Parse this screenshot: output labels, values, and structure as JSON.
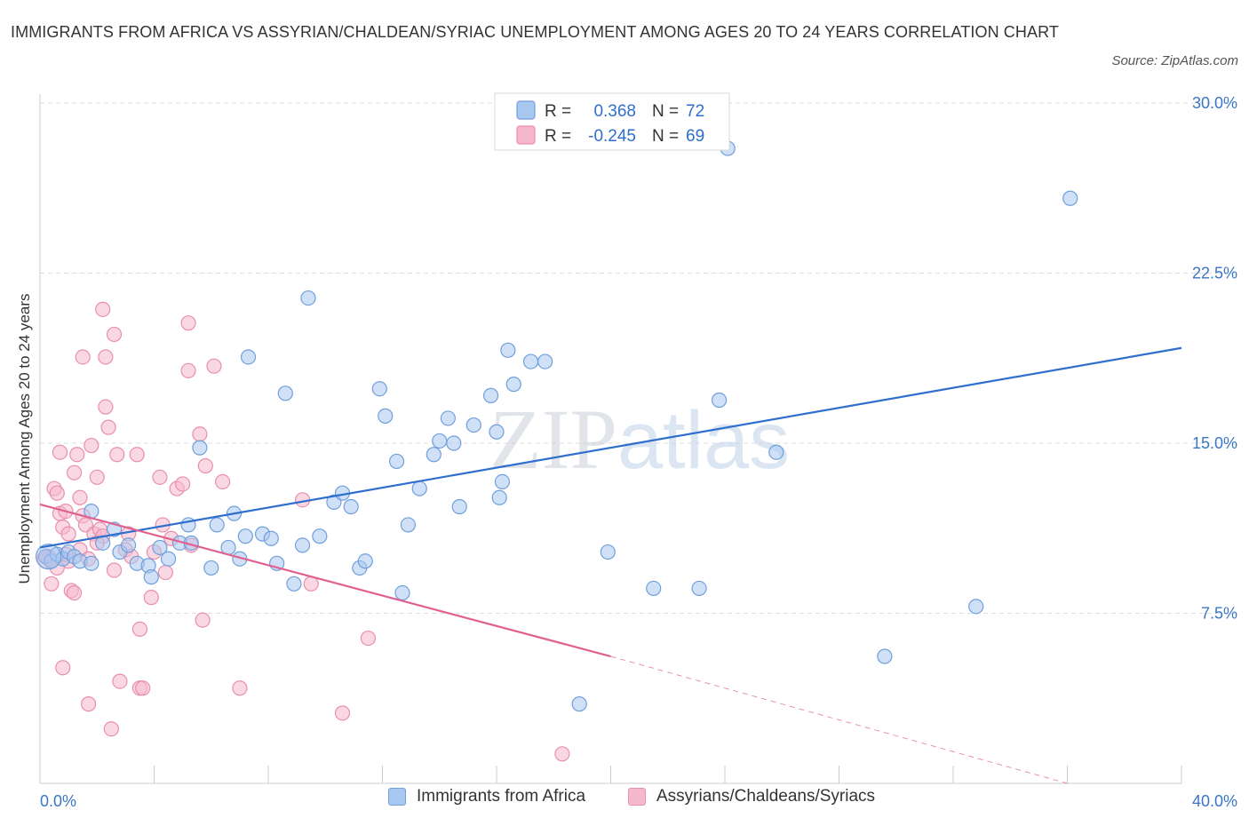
{
  "title": "IMMIGRANTS FROM AFRICA VS ASSYRIAN/CHALDEAN/SYRIAC UNEMPLOYMENT AMONG AGES 20 TO 24 YEARS CORRELATION CHART",
  "source": "Source: ZipAtlas.com",
  "watermark": "ZIPatlas",
  "colors": {
    "blue_fill": "#a9c8f1",
    "blue_stroke": "#6f9fdb",
    "blue_line": "#2e6fcd",
    "pink_fill": "#f6b8cc",
    "pink_stroke": "#e98fab",
    "pink_line": "#e0618f",
    "axis_text": "#3a76c6",
    "grid": "#dddddd"
  },
  "stats": {
    "r_label": "R =",
    "n_label": "N =",
    "series1": {
      "r": "0.368",
      "n": "72"
    },
    "series2": {
      "r": "-0.245",
      "n": "69"
    }
  },
  "chart_data": {
    "type": "scatter",
    "title": "IMMIGRANTS FROM AFRICA VS ASSYRIAN/CHALDEAN/SYRIAC UNEMPLOYMENT AMONG AGES 20 TO 24 YEARS CORRELATION CHART",
    "ylabel": "Unemployment Among Ages 20 to 24 years",
    "xlabel": "",
    "xlim": [
      0,
      40
    ],
    "ylim": [
      0,
      30
    ],
    "x_tick_labels": [
      "0.0%",
      "40.0%"
    ],
    "y_ticks": [
      7.5,
      15.0,
      22.5,
      30.0
    ],
    "y_tick_labels": [
      "7.5%",
      "15.0%",
      "22.5%",
      "30.0%"
    ],
    "grid": true,
    "legend_position": "top-center",
    "series": [
      {
        "name": "Immigrants from Africa",
        "color": "#a9c8f1",
        "trend": {
          "x": [
            0,
            40
          ],
          "y": [
            10.4,
            19.2
          ]
        },
        "points": [
          [
            0.2,
            10.0
          ],
          [
            0.4,
            9.8
          ],
          [
            0.6,
            10.1
          ],
          [
            0.8,
            9.9
          ],
          [
            1.0,
            10.2
          ],
          [
            1.2,
            10.0
          ],
          [
            1.4,
            9.8
          ],
          [
            1.8,
            9.7
          ],
          [
            1.8,
            12.0
          ],
          [
            2.2,
            10.6
          ],
          [
            2.6,
            11.2
          ],
          [
            2.8,
            10.2
          ],
          [
            3.1,
            10.5
          ],
          [
            3.4,
            9.7
          ],
          [
            3.8,
            9.6
          ],
          [
            3.9,
            9.1
          ],
          [
            4.2,
            10.4
          ],
          [
            4.5,
            9.9
          ],
          [
            4.9,
            10.6
          ],
          [
            5.2,
            11.4
          ],
          [
            5.3,
            10.6
          ],
          [
            5.6,
            14.8
          ],
          [
            6.0,
            9.5
          ],
          [
            6.2,
            11.4
          ],
          [
            6.6,
            10.4
          ],
          [
            6.8,
            11.9
          ],
          [
            7.0,
            9.9
          ],
          [
            7.3,
            18.8
          ],
          [
            7.2,
            10.9
          ],
          [
            7.8,
            11.0
          ],
          [
            8.1,
            10.8
          ],
          [
            8.3,
            9.7
          ],
          [
            8.6,
            17.2
          ],
          [
            8.9,
            8.8
          ],
          [
            9.2,
            10.5
          ],
          [
            9.4,
            21.4
          ],
          [
            9.8,
            10.9
          ],
          [
            10.3,
            12.4
          ],
          [
            10.6,
            12.8
          ],
          [
            10.9,
            12.2
          ],
          [
            11.2,
            9.5
          ],
          [
            11.4,
            9.8
          ],
          [
            11.9,
            17.4
          ],
          [
            12.1,
            16.2
          ],
          [
            12.5,
            14.2
          ],
          [
            12.7,
            8.4
          ],
          [
            12.9,
            11.4
          ],
          [
            13.3,
            13.0
          ],
          [
            13.8,
            14.5
          ],
          [
            14.0,
            15.1
          ],
          [
            14.3,
            16.1
          ],
          [
            14.5,
            15.0
          ],
          [
            14.7,
            12.2
          ],
          [
            15.2,
            15.8
          ],
          [
            15.8,
            17.1
          ],
          [
            16.1,
            12.6
          ],
          [
            16.2,
            13.3
          ],
          [
            16.0,
            15.5
          ],
          [
            16.4,
            19.1
          ],
          [
            16.6,
            17.6
          ],
          [
            17.2,
            18.6
          ],
          [
            17.7,
            18.6
          ],
          [
            18.9,
            3.5
          ],
          [
            19.9,
            10.2
          ],
          [
            21.5,
            8.6
          ],
          [
            23.1,
            8.6
          ],
          [
            23.8,
            16.9
          ],
          [
            24.1,
            28.0
          ],
          [
            25.8,
            14.6
          ],
          [
            29.6,
            5.6
          ],
          [
            32.8,
            7.8
          ],
          [
            36.1,
            25.8
          ]
        ]
      },
      {
        "name": "Assyrians/Chaldeans/Syriacs",
        "color": "#f6b8cc",
        "trend": {
          "x": [
            0,
            20
          ],
          "y": [
            12.3,
            5.6
          ]
        },
        "trend_dashed": {
          "x": [
            20,
            36
          ],
          "y": [
            5.6,
            0.0
          ]
        },
        "points": [
          [
            0.2,
            10.0
          ],
          [
            0.3,
            9.9
          ],
          [
            0.4,
            8.8
          ],
          [
            0.5,
            13.0
          ],
          [
            0.6,
            12.8
          ],
          [
            0.7,
            14.6
          ],
          [
            0.7,
            11.9
          ],
          [
            0.8,
            11.3
          ],
          [
            0.8,
            5.1
          ],
          [
            0.9,
            12.0
          ],
          [
            1.0,
            11.0
          ],
          [
            1.1,
            8.5
          ],
          [
            1.2,
            8.4
          ],
          [
            1.2,
            13.7
          ],
          [
            1.3,
            14.5
          ],
          [
            1.4,
            12.6
          ],
          [
            1.5,
            11.8
          ],
          [
            1.5,
            18.8
          ],
          [
            1.6,
            11.4
          ],
          [
            1.7,
            3.5
          ],
          [
            1.8,
            14.9
          ],
          [
            1.9,
            11.0
          ],
          [
            2.0,
            13.5
          ],
          [
            2.1,
            11.2
          ],
          [
            2.2,
            10.9
          ],
          [
            2.2,
            20.9
          ],
          [
            2.3,
            18.8
          ],
          [
            2.3,
            16.6
          ],
          [
            2.4,
            15.7
          ],
          [
            2.5,
            2.4
          ],
          [
            2.6,
            19.8
          ],
          [
            2.6,
            9.4
          ],
          [
            2.7,
            14.5
          ],
          [
            2.8,
            4.5
          ],
          [
            3.0,
            10.3
          ],
          [
            3.2,
            10.0
          ],
          [
            3.4,
            14.5
          ],
          [
            3.5,
            4.2
          ],
          [
            3.5,
            6.8
          ],
          [
            3.6,
            4.2
          ],
          [
            3.9,
            8.2
          ],
          [
            4.2,
            13.5
          ],
          [
            4.3,
            11.4
          ],
          [
            4.4,
            9.3
          ],
          [
            4.6,
            10.8
          ],
          [
            4.8,
            13.0
          ],
          [
            5.0,
            13.2
          ],
          [
            5.2,
            20.3
          ],
          [
            5.2,
            18.2
          ],
          [
            5.3,
            10.5
          ],
          [
            5.6,
            15.4
          ],
          [
            5.7,
            7.2
          ],
          [
            5.8,
            14.0
          ],
          [
            6.1,
            18.4
          ],
          [
            6.4,
            13.3
          ],
          [
            7.0,
            4.2
          ],
          [
            9.2,
            12.5
          ],
          [
            9.5,
            8.8
          ],
          [
            10.6,
            3.1
          ],
          [
            11.5,
            6.4
          ],
          [
            18.3,
            1.3
          ],
          [
            2.0,
            10.6
          ],
          [
            1.0,
            9.8
          ],
          [
            0.9,
            10.1
          ],
          [
            1.4,
            10.3
          ],
          [
            3.1,
            11.0
          ],
          [
            4.0,
            10.2
          ],
          [
            0.6,
            9.5
          ],
          [
            1.7,
            9.9
          ]
        ]
      }
    ]
  }
}
